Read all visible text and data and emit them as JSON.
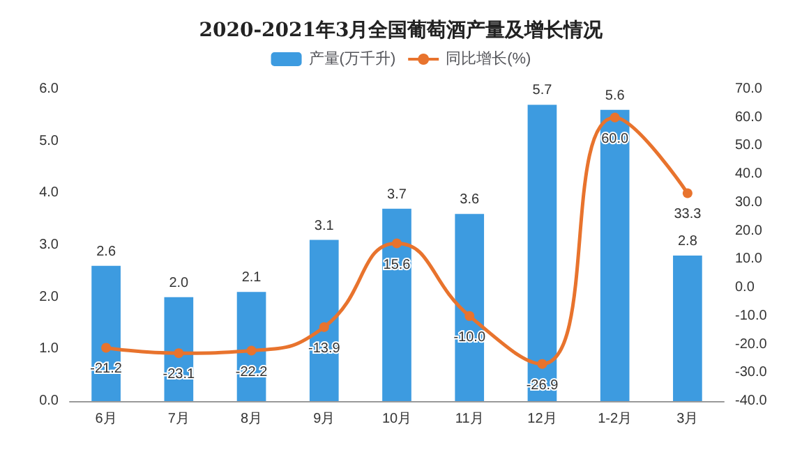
{
  "chart_data": {
    "type": "bar",
    "title": "2020-2021年3月全国葡萄酒产量及增长情况",
    "categories": [
      "6月",
      "7月",
      "8月",
      "9月",
      "10月",
      "11月",
      "12月",
      "1-2月",
      "3月"
    ],
    "series": [
      {
        "name": "产量(万千升)",
        "color": "#3d9be0",
        "values": [
          2.6,
          2.0,
          2.1,
          3.1,
          3.7,
          3.6,
          5.7,
          5.6,
          2.8
        ],
        "value_labels": [
          "2.6",
          "2.0",
          "2.1",
          "3.1",
          "3.7",
          "3.6",
          "5.7",
          "5.6",
          "2.8"
        ]
      },
      {
        "name": "同比增长(%)",
        "type": "line",
        "axis": "y2",
        "color": "#e8732d",
        "values": [
          -21.2,
          -23.1,
          -22.2,
          -13.9,
          15.6,
          -10.0,
          -26.9,
          60.0,
          33.3
        ],
        "value_labels": [
          "-21.2",
          "-23.1",
          "-22.2",
          "-13.9",
          "15.6",
          "-10.0",
          "-26.9",
          "60.0",
          "33.3"
        ]
      }
    ],
    "ylim": [
      0,
      6
    ],
    "yticks": [
      {
        "value": 0,
        "label": "0.0"
      },
      {
        "value": 1,
        "label": "1.0"
      },
      {
        "value": 2,
        "label": "2.0"
      },
      {
        "value": 3,
        "label": "3.0"
      },
      {
        "value": 4,
        "label": "4.0"
      },
      {
        "value": 5,
        "label": "5.0"
      },
      {
        "value": 6,
        "label": "6.0"
      }
    ],
    "y2lim": [
      -40,
      70
    ],
    "y2ticks": [
      {
        "value": -40,
        "label": "-40.0"
      },
      {
        "value": -30,
        "label": "-30.0"
      },
      {
        "value": -20,
        "label": "-20.0"
      },
      {
        "value": -10,
        "label": "-10.0"
      },
      {
        "value": 0,
        "label": "0.0"
      },
      {
        "value": 10,
        "label": "10.0"
      },
      {
        "value": 20,
        "label": "20.0"
      },
      {
        "value": 30,
        "label": "30.0"
      },
      {
        "value": 40,
        "label": "40.0"
      },
      {
        "value": 50,
        "label": "50.0"
      },
      {
        "value": 60,
        "label": "60.0"
      },
      {
        "value": 70,
        "label": "70.0"
      }
    ],
    "legend": "top",
    "marker": "circle",
    "grid": false
  }
}
